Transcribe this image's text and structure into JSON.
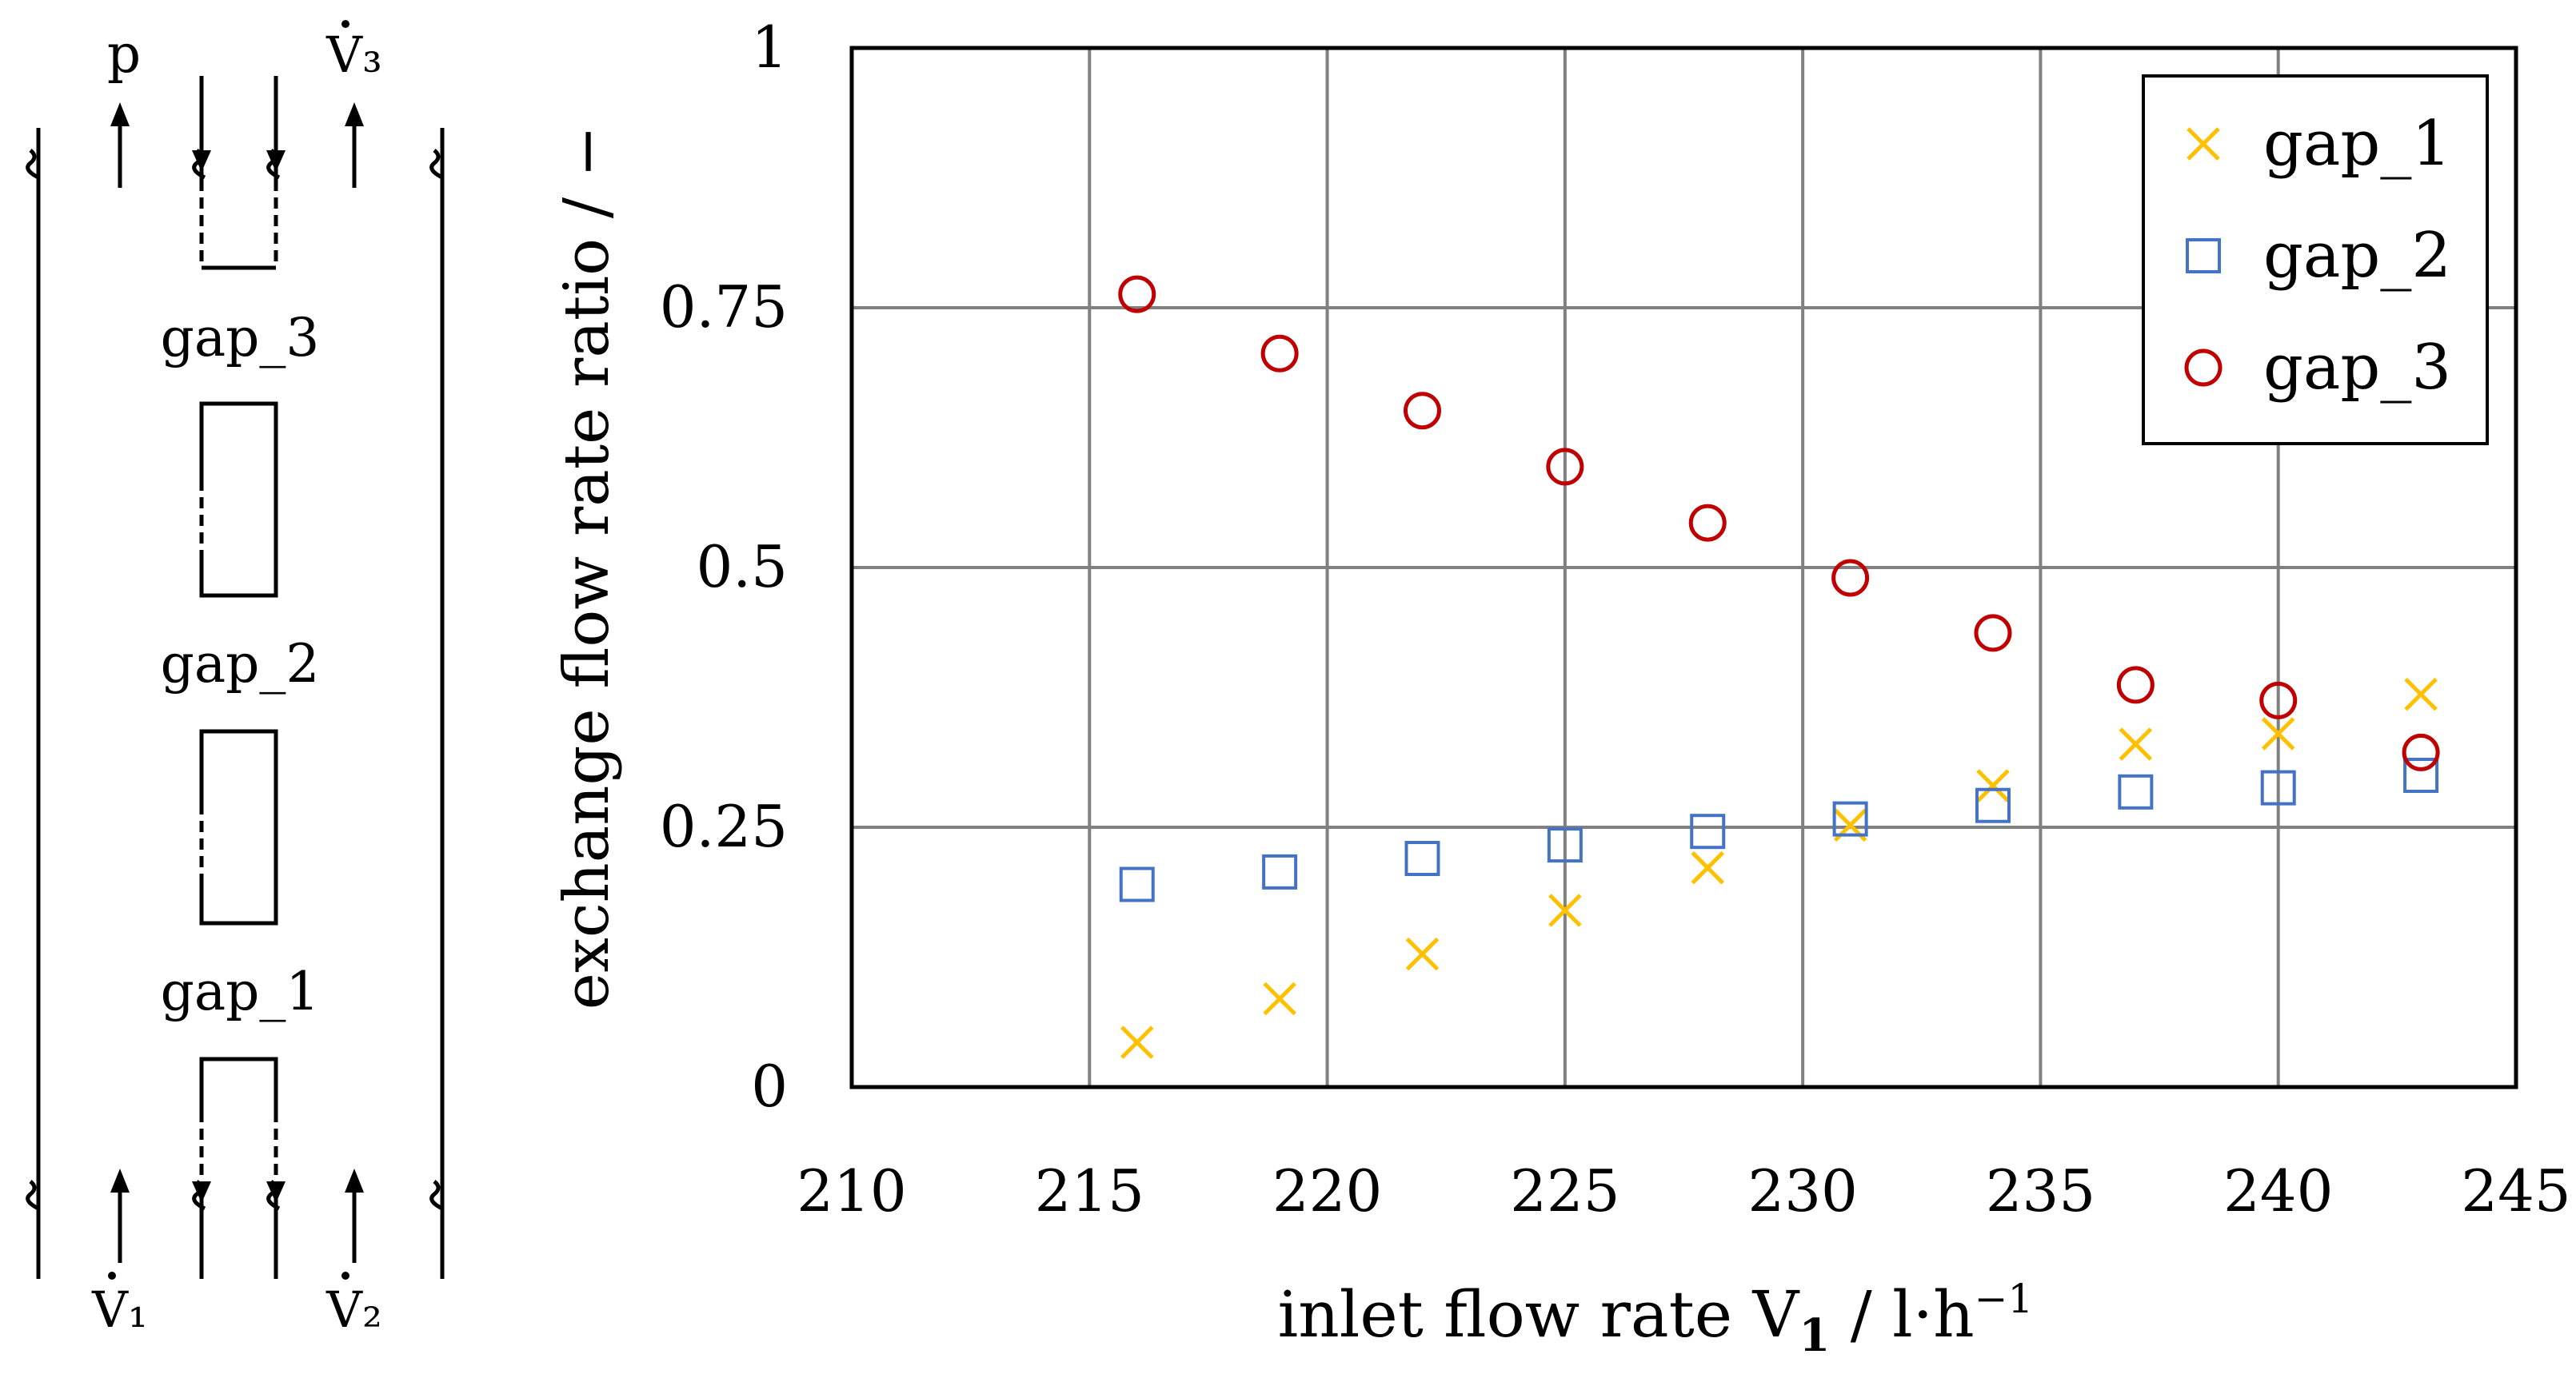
{
  "schematic": {
    "top_left_label": "p",
    "top_right_label": "V₃",
    "bottom_left_label": "V₁",
    "bottom_right_label": "V₂",
    "gap_labels": [
      "gap_3",
      "gap_2",
      "gap_1"
    ]
  },
  "chart_data": {
    "type": "scatter",
    "title": "",
    "xlabel_prefix": "inlet flow rate ",
    "xlabel_symbol": "V",
    "xlabel_subscript": "1",
    "xlabel_unit": " / l·h",
    "xlabel_unit_exp": "−1",
    "ylabel": "exchange flow rate ratio / −",
    "xlim": [
      210,
      245
    ],
    "ylim": [
      0,
      1
    ],
    "xticks": [
      "210",
      "215",
      "220",
      "225",
      "230",
      "235",
      "240",
      "245"
    ],
    "xtick_values": [
      210,
      215,
      220,
      225,
      230,
      235,
      240,
      245
    ],
    "yticks": [
      "0",
      "0.25",
      "0.5",
      "0.75",
      "1"
    ],
    "ytick_values": [
      0,
      0.25,
      0.5,
      0.75,
      1
    ],
    "grid": true,
    "legend_position": "top-right",
    "x": [
      216,
      219,
      222,
      225,
      228,
      231,
      234,
      237,
      240,
      243
    ],
    "series": [
      {
        "name": "gap_1",
        "marker": "x",
        "color": "#FFC000",
        "values": [
          0.043,
          0.085,
          0.128,
          0.17,
          0.211,
          0.252,
          0.29,
          0.33,
          0.34,
          0.378
        ]
      },
      {
        "name": "gap_2",
        "marker": "square",
        "color": "#4472C4",
        "values": [
          0.195,
          0.207,
          0.22,
          0.233,
          0.246,
          0.258,
          0.271,
          0.284,
          0.288,
          0.3
        ]
      },
      {
        "name": "gap_3",
        "marker": "circle",
        "color": "#C00000",
        "values": [
          0.763,
          0.706,
          0.651,
          0.597,
          0.543,
          0.49,
          0.437,
          0.387,
          0.372,
          0.322
        ]
      }
    ]
  }
}
